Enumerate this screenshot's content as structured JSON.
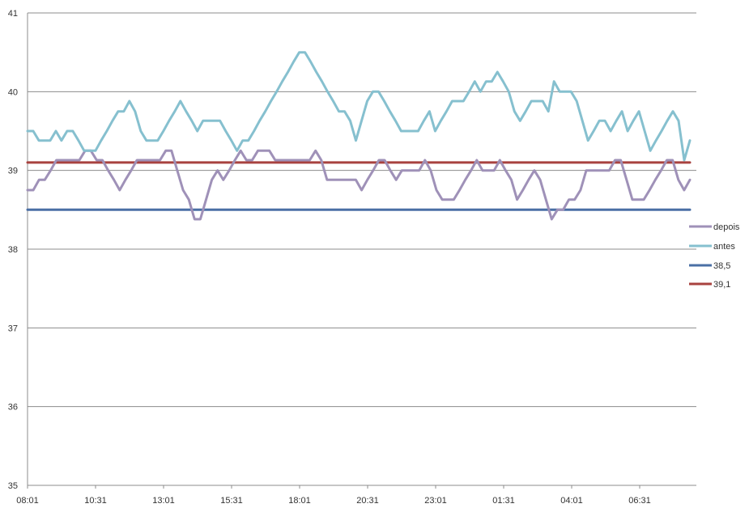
{
  "chart_data": {
    "type": "line",
    "title": "",
    "xlabel": "",
    "ylabel": "",
    "ylim": [
      35,
      41
    ],
    "yticks": [
      "35",
      "36",
      "37",
      "38",
      "39",
      "40",
      "41"
    ],
    "xticks": [
      "08:01",
      "10:31",
      "13:01",
      "15:31",
      "18:01",
      "20:31",
      "23:01",
      "01:31",
      "04:01",
      "06:31"
    ],
    "grid": true,
    "legend_position": "right",
    "series": [
      {
        "name": "depois",
        "color": "#9f91b8",
        "y": [
          38.75,
          38.75,
          38.88,
          38.88,
          39.0,
          39.13,
          39.13,
          39.13,
          39.13,
          39.13,
          39.25,
          39.25,
          39.13,
          39.13,
          39.0,
          38.88,
          38.75,
          38.88,
          39.0,
          39.13,
          39.13,
          39.13,
          39.13,
          39.13,
          39.25,
          39.25,
          39.0,
          38.75,
          38.63,
          38.38,
          38.38,
          38.63,
          38.88,
          39.0,
          38.88,
          39.0,
          39.13,
          39.25,
          39.13,
          39.13,
          39.25,
          39.25,
          39.25,
          39.13,
          39.13,
          39.13,
          39.13,
          39.13,
          39.13,
          39.13,
          39.25,
          39.13,
          38.88,
          38.88,
          38.88,
          38.88,
          38.88,
          38.88,
          38.75,
          38.88,
          39.0,
          39.13,
          39.13,
          39.0,
          38.88,
          39.0,
          39.0,
          39.0,
          39.0,
          39.13,
          39.0,
          38.75,
          38.63,
          38.63,
          38.63,
          38.75,
          38.88,
          39.0,
          39.13,
          39.0,
          39.0,
          39.0,
          39.13,
          39.0,
          38.88,
          38.63,
          38.75,
          38.88,
          39.0,
          38.88,
          38.63,
          38.38,
          38.5,
          38.5,
          38.63,
          38.63,
          38.75,
          39.0,
          39.0,
          39.0,
          39.0,
          39.0,
          39.13,
          39.13,
          38.88,
          38.63,
          38.63,
          38.63,
          38.75,
          38.88,
          39.0,
          39.13,
          39.13,
          38.88,
          38.75,
          38.88
        ]
      },
      {
        "name": "antes",
        "color": "#86c0cf",
        "y": [
          39.5,
          39.5,
          39.38,
          39.38,
          39.38,
          39.5,
          39.38,
          39.5,
          39.5,
          39.38,
          39.25,
          39.25,
          39.25,
          39.38,
          39.5,
          39.63,
          39.75,
          39.75,
          39.88,
          39.75,
          39.5,
          39.38,
          39.38,
          39.38,
          39.5,
          39.63,
          39.75,
          39.88,
          39.75,
          39.63,
          39.5,
          39.63,
          39.63,
          39.63,
          39.63,
          39.5,
          39.38,
          39.25,
          39.38,
          39.38,
          39.5,
          39.63,
          39.75,
          39.88,
          40.0,
          40.13,
          40.25,
          40.38,
          40.5,
          40.5,
          40.38,
          40.25,
          40.13,
          40.0,
          39.88,
          39.75,
          39.75,
          39.63,
          39.38,
          39.63,
          39.88,
          40.0,
          40.0,
          39.88,
          39.75,
          39.63,
          39.5,
          39.5,
          39.5,
          39.5,
          39.63,
          39.75,
          39.5,
          39.63,
          39.75,
          39.88,
          39.88,
          39.88,
          40.0,
          40.13,
          40.0,
          40.13,
          40.13,
          40.25,
          40.13,
          40.0,
          39.75,
          39.63,
          39.75,
          39.88,
          39.88,
          39.88,
          39.75,
          40.13,
          40.0,
          40.0,
          40.0,
          39.88,
          39.63,
          39.38,
          39.5,
          39.63,
          39.63,
          39.5,
          39.63,
          39.75,
          39.5,
          39.63,
          39.75,
          39.5,
          39.25,
          39.38,
          39.5,
          39.63,
          39.75,
          39.63,
          39.13,
          39.38
        ]
      },
      {
        "name": "38,5",
        "color": "#4a6fa5",
        "y": [
          38.5,
          38.5
        ]
      },
      {
        "name": "39,1",
        "color": "#a8423f",
        "y": [
          39.1,
          39.1
        ]
      }
    ]
  }
}
